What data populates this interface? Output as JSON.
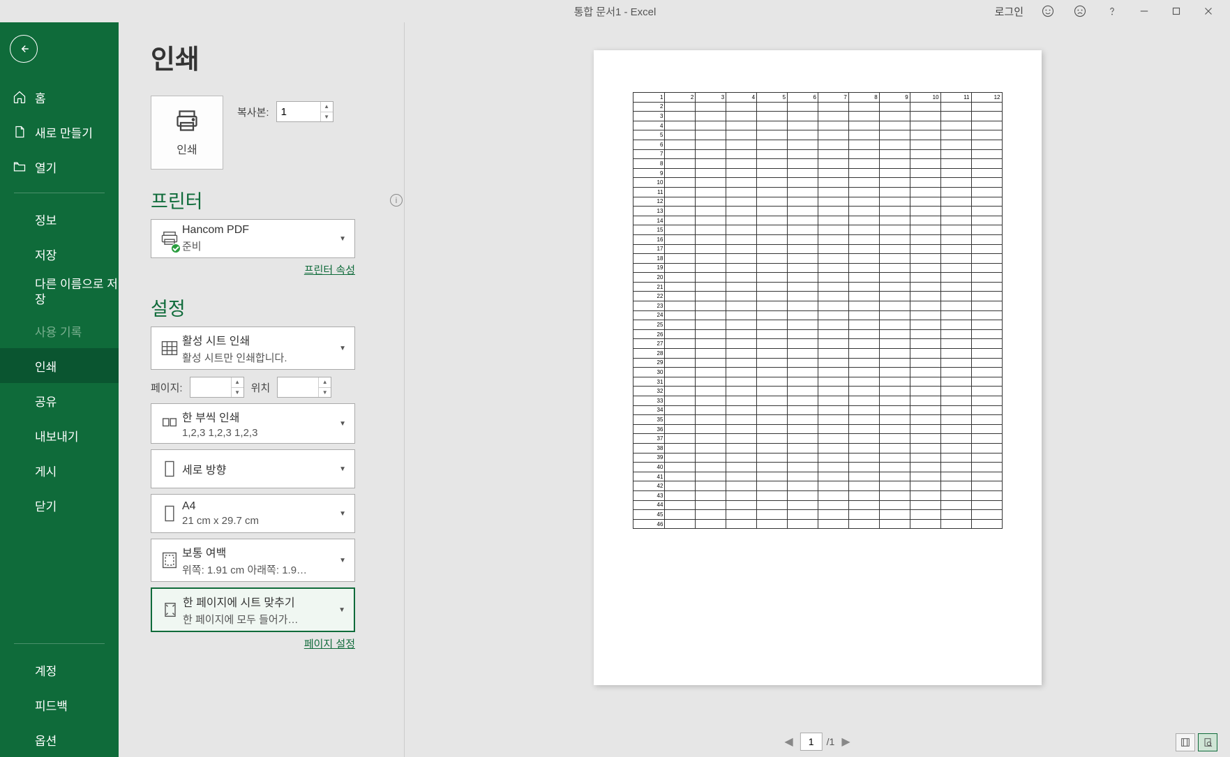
{
  "titlebar": {
    "doc_title": "통합 문서1  -  Excel",
    "login": "로그인"
  },
  "sidebar": {
    "home": "홈",
    "new": "새로 만들기",
    "open": "열기",
    "info": "정보",
    "save": "저장",
    "save_as": "다른 이름으로 저장",
    "history": "사용 기록",
    "print": "인쇄",
    "share": "공유",
    "export": "내보내기",
    "publish": "게시",
    "close": "닫기",
    "account": "계정",
    "feedback": "피드백",
    "options": "옵션"
  },
  "page": {
    "title": "인쇄",
    "print_button": "인쇄",
    "copies_label": "복사본:",
    "copies_value": "1",
    "printer_section": "프린터",
    "printer_name": "Hancom PDF",
    "printer_status": "준비",
    "printer_props": "프린터 속성",
    "settings_section": "설정",
    "active_sheet_title": "활성 시트 인쇄",
    "active_sheet_sub": "활성 시트만 인쇄합니다.",
    "pages_label": "페이지:",
    "pages_to_label": "위치",
    "collate_title": "한 부씩 인쇄",
    "collate_sub": "1,2,3    1,2,3    1,2,3",
    "orientation": "세로 방향",
    "paper_title": "A4",
    "paper_sub": "21 cm x 29.7 cm",
    "margins_title": "보통 여백",
    "margins_sub": "위쪽: 1.91 cm 아래쪽: 1.9…",
    "scaling_title": "한 페이지에 시트 맞추기",
    "scaling_sub": "한 페이지에 모두 들어가…",
    "page_setup": "페이지 설정"
  },
  "preview": {
    "current_page": "1",
    "total_pages": "/1",
    "col_headers": [
      "1",
      "2",
      "3",
      "4",
      "5",
      "6",
      "7",
      "8",
      "9",
      "10",
      "11",
      "12"
    ],
    "row_count": 46
  }
}
